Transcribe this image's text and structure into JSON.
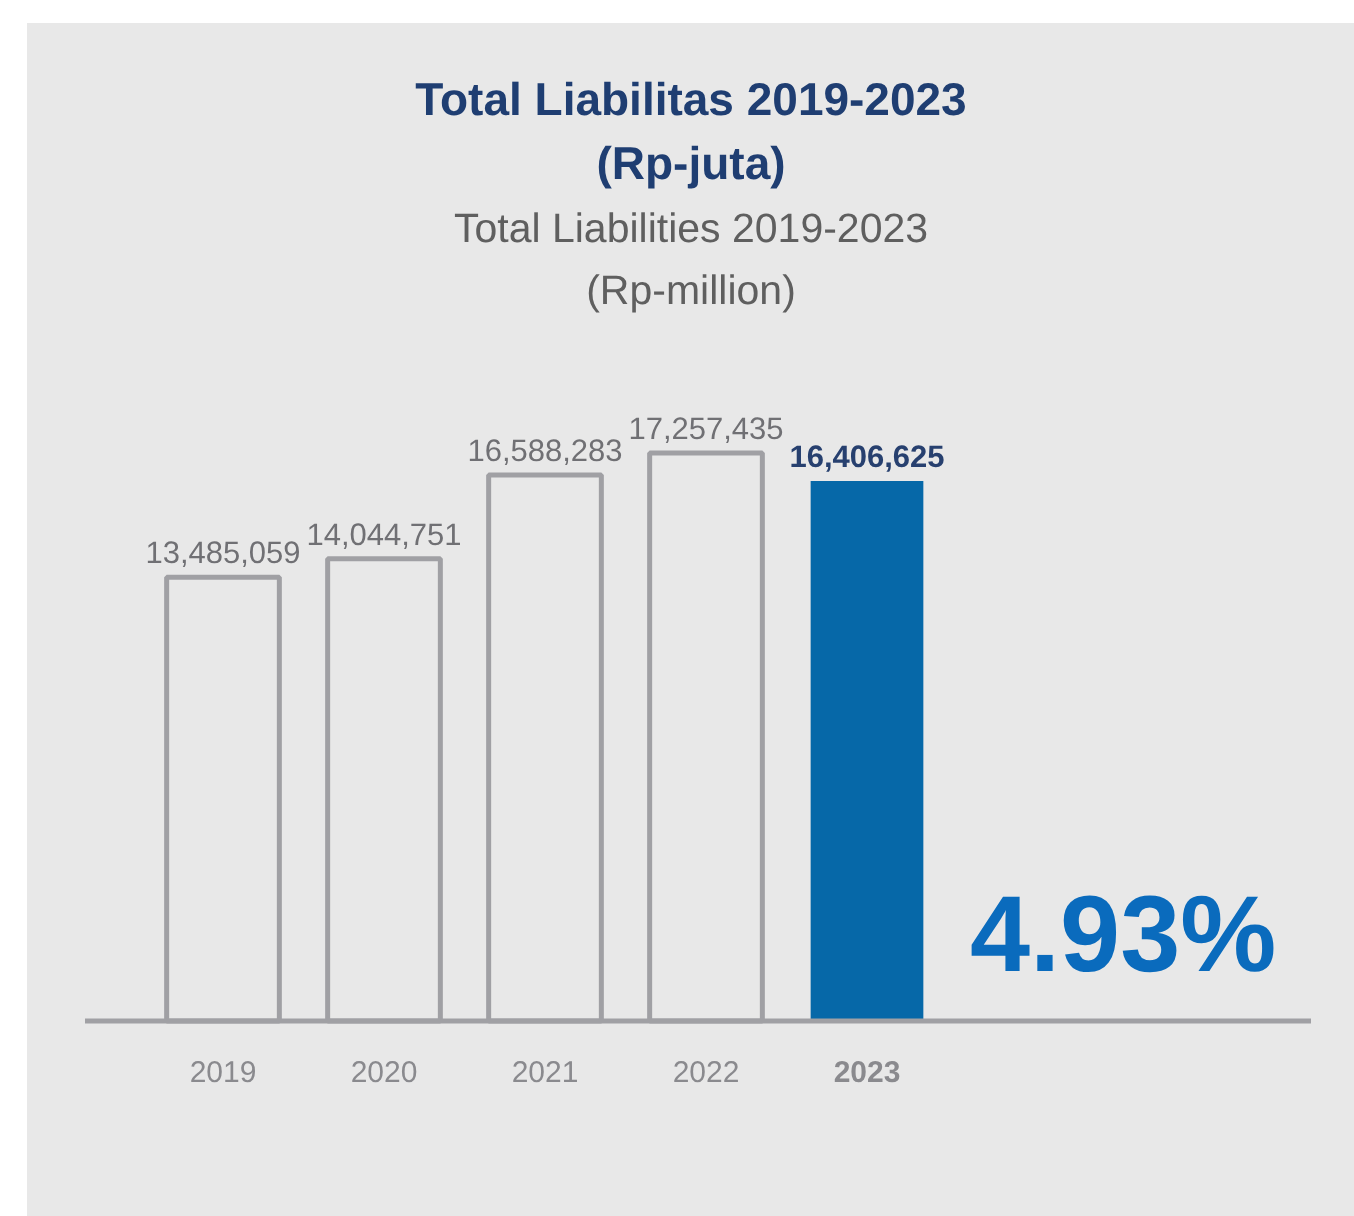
{
  "chart_data": {
    "type": "bar",
    "title": "Total Liabilitas 2019-2023\n(Rp-juta)",
    "subtitle": "Total Liabilities 2019-2023\n(Rp-million)",
    "categories": [
      "2019",
      "2020",
      "2021",
      "2022",
      "2023"
    ],
    "values": [
      13485059,
      14044751,
      16588283,
      17257435,
      16406625
    ],
    "value_labels": [
      "13,485,059",
      "14,044,751",
      "16,588,283",
      "17,257,435",
      "16,406,625"
    ],
    "colors": [
      "#a0a0a4",
      "#a0a0a4",
      "#a0a0a4",
      "#a0a0a4",
      "#0668a8"
    ],
    "annotations": [
      "4.93%"
    ]
  }
}
